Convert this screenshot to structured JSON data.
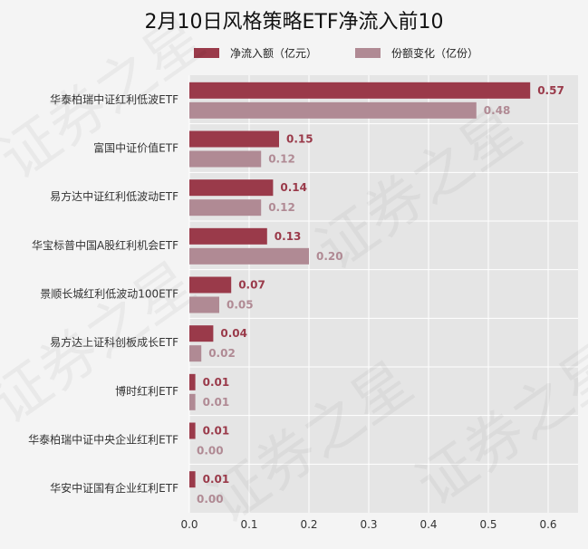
{
  "title": "2月10日风格策略ETF净流入前10",
  "legend": {
    "series0": "净流入额（亿元）",
    "series1": "份额变化（亿份）"
  },
  "watermark": "证券之星",
  "colors": {
    "series0": "#9a3a4a",
    "series1": "#b08a94",
    "plot_bg": "#e5e5e5",
    "grid": "#ffffff"
  },
  "chart_data": {
    "type": "bar",
    "orientation": "horizontal",
    "title": "2月10日风格策略ETF净流入前10",
    "categories": [
      "华泰柏瑞中证红利低波ETF",
      "富国中证价值ETF",
      "易方达中证红利低波动ETF",
      "华宝标普中国A股红利机会ETF",
      "景顺长城红利低波动100ETF",
      "易方达上证科创板成长ETF",
      "博时红利ETF",
      "华泰柏瑞中证中央企业红利ETF",
      "华安中证国有企业红利ETF"
    ],
    "series": [
      {
        "name": "净流入额（亿元）",
        "values": [
          0.57,
          0.15,
          0.14,
          0.13,
          0.07,
          0.04,
          0.01,
          0.01,
          0.01
        ],
        "labels": [
          "0.57",
          "0.15",
          "0.14",
          "0.13",
          "0.07",
          "0.04",
          "0.01",
          "0.01",
          "0.01"
        ]
      },
      {
        "name": "份额变化（亿份）",
        "values": [
          0.48,
          0.12,
          0.12,
          0.2,
          0.05,
          0.02,
          0.01,
          0.0,
          0.0
        ],
        "labels": [
          "0.48",
          "0.12",
          "0.12",
          "0.20",
          "0.05",
          "0.02",
          "0.01",
          "0.00",
          "0.00"
        ]
      }
    ],
    "x_ticks": [
      "0.0",
      "0.1",
      "0.2",
      "0.3",
      "0.4",
      "0.5",
      "0.6"
    ],
    "xlim": [
      0,
      0.65
    ],
    "grid": true,
    "legend_position": "top"
  }
}
